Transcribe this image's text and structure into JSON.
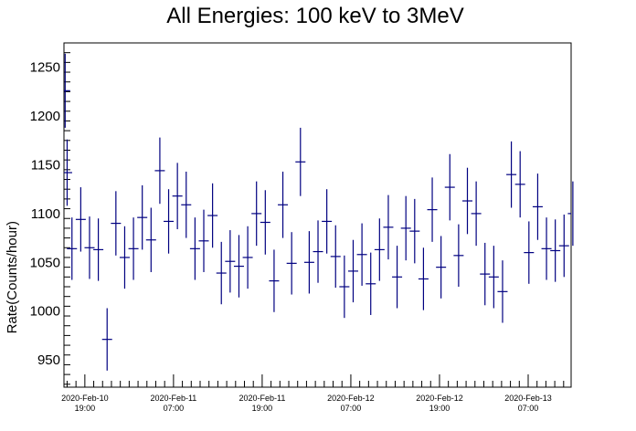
{
  "chart_data": {
    "type": "scatter",
    "title": "All Energies:  100 keV to 3MeV",
    "xlabel": "",
    "ylabel": "Rate(Counts/hour)",
    "ylim": [
      922,
      1275
    ],
    "xlim_hours": [
      -10.6,
      246.8
    ],
    "yticks": [
      950,
      1000,
      1050,
      1100,
      1150,
      1200,
      1250
    ],
    "xticks": [
      {
        "hours": 0,
        "line1": "2020-Feb-10",
        "line2": "19:00"
      },
      {
        "hours": 45,
        "line1": "2020-Feb-11",
        "line2": "07:00"
      },
      {
        "hours": 90,
        "line1": "2020-Feb-11",
        "line2": "19:00"
      },
      {
        "hours": 135,
        "line1": "2020-Feb-12",
        "line2": "07:00"
      },
      {
        "hours": 180,
        "line1": "2020-Feb-12",
        "line2": "19:00"
      },
      {
        "hours": 225,
        "line1": "2020-Feb-13",
        "line2": "07:00"
      }
    ],
    "grid": false,
    "legend": "none",
    "series": [
      {
        "color": "#000080",
        "points": [
          {
            "x": -10.0,
            "y": 1226,
            "err": 38
          },
          {
            "x": -9.0,
            "y": 1142,
            "err": 34
          },
          {
            "x": -6.54,
            "y": 1064,
            "err": 32
          },
          {
            "x": -2.08,
            "y": 1094,
            "err": 33
          },
          {
            "x": 2.38,
            "y": 1065,
            "err": 32
          },
          {
            "x": 6.84,
            "y": 1063,
            "err": 32
          },
          {
            "x": 11.3,
            "y": 971,
            "err": 32
          },
          {
            "x": 15.76,
            "y": 1090,
            "err": 33
          },
          {
            "x": 20.22,
            "y": 1055,
            "err": 32
          },
          {
            "x": 24.68,
            "y": 1064,
            "err": 32
          },
          {
            "x": 29.14,
            "y": 1096,
            "err": 33
          },
          {
            "x": 33.6,
            "y": 1073,
            "err": 33
          },
          {
            "x": 38.06,
            "y": 1144,
            "err": 34
          },
          {
            "x": 42.52,
            "y": 1092,
            "err": 33
          },
          {
            "x": 46.98,
            "y": 1118,
            "err": 34
          },
          {
            "x": 51.44,
            "y": 1109,
            "err": 34
          },
          {
            "x": 55.9,
            "y": 1064,
            "err": 32
          },
          {
            "x": 60.36,
            "y": 1072,
            "err": 32
          },
          {
            "x": 64.82,
            "y": 1098,
            "err": 33
          },
          {
            "x": 69.28,
            "y": 1039,
            "err": 32
          },
          {
            "x": 73.74,
            "y": 1051,
            "err": 32
          },
          {
            "x": 78.2,
            "y": 1046,
            "err": 32
          },
          {
            "x": 82.66,
            "y": 1055,
            "err": 32
          },
          {
            "x": 87.12,
            "y": 1100,
            "err": 33
          },
          {
            "x": 91.58,
            "y": 1091,
            "err": 33
          },
          {
            "x": 96.04,
            "y": 1031,
            "err": 32
          },
          {
            "x": 100.5,
            "y": 1109,
            "err": 34
          },
          {
            "x": 104.96,
            "y": 1049,
            "err": 32
          },
          {
            "x": 109.42,
            "y": 1153,
            "err": 35
          },
          {
            "x": 113.88,
            "y": 1050,
            "err": 32
          },
          {
            "x": 118.34,
            "y": 1061,
            "err": 32
          },
          {
            "x": 122.8,
            "y": 1092,
            "err": 33
          },
          {
            "x": 127.26,
            "y": 1056,
            "err": 32
          },
          {
            "x": 131.72,
            "y": 1025,
            "err": 32
          },
          {
            "x": 136.18,
            "y": 1041,
            "err": 32
          },
          {
            "x": 140.64,
            "y": 1058,
            "err": 32
          },
          {
            "x": 145.1,
            "y": 1028,
            "err": 32
          },
          {
            "x": 149.56,
            "y": 1063,
            "err": 32
          },
          {
            "x": 154.02,
            "y": 1086,
            "err": 33
          },
          {
            "x": 158.48,
            "y": 1035,
            "err": 32
          },
          {
            "x": 162.94,
            "y": 1085,
            "err": 33
          },
          {
            "x": 167.4,
            "y": 1082,
            "err": 33
          },
          {
            "x": 171.86,
            "y": 1033,
            "err": 32
          },
          {
            "x": 176.32,
            "y": 1104,
            "err": 33
          },
          {
            "x": 180.78,
            "y": 1045,
            "err": 32
          },
          {
            "x": 185.24,
            "y": 1127,
            "err": 34
          },
          {
            "x": 189.7,
            "y": 1057,
            "err": 32
          },
          {
            "x": 194.16,
            "y": 1113,
            "err": 34
          },
          {
            "x": 198.62,
            "y": 1100,
            "err": 33
          },
          {
            "x": 203.08,
            "y": 1038,
            "err": 32
          },
          {
            "x": 207.54,
            "y": 1035,
            "err": 32
          },
          {
            "x": 212.0,
            "y": 1020,
            "err": 32
          },
          {
            "x": 216.46,
            "y": 1140,
            "err": 34
          },
          {
            "x": 220.92,
            "y": 1130,
            "err": 34
          },
          {
            "x": 225.38,
            "y": 1060,
            "err": 32
          },
          {
            "x": 229.84,
            "y": 1107,
            "err": 34
          },
          {
            "x": 234.3,
            "y": 1064,
            "err": 32
          },
          {
            "x": 238.76,
            "y": 1062,
            "err": 32
          },
          {
            "x": 243.22,
            "y": 1067,
            "err": 32
          },
          {
            "x": 247.68,
            "y": 1100,
            "err": 33
          }
        ]
      }
    ]
  }
}
